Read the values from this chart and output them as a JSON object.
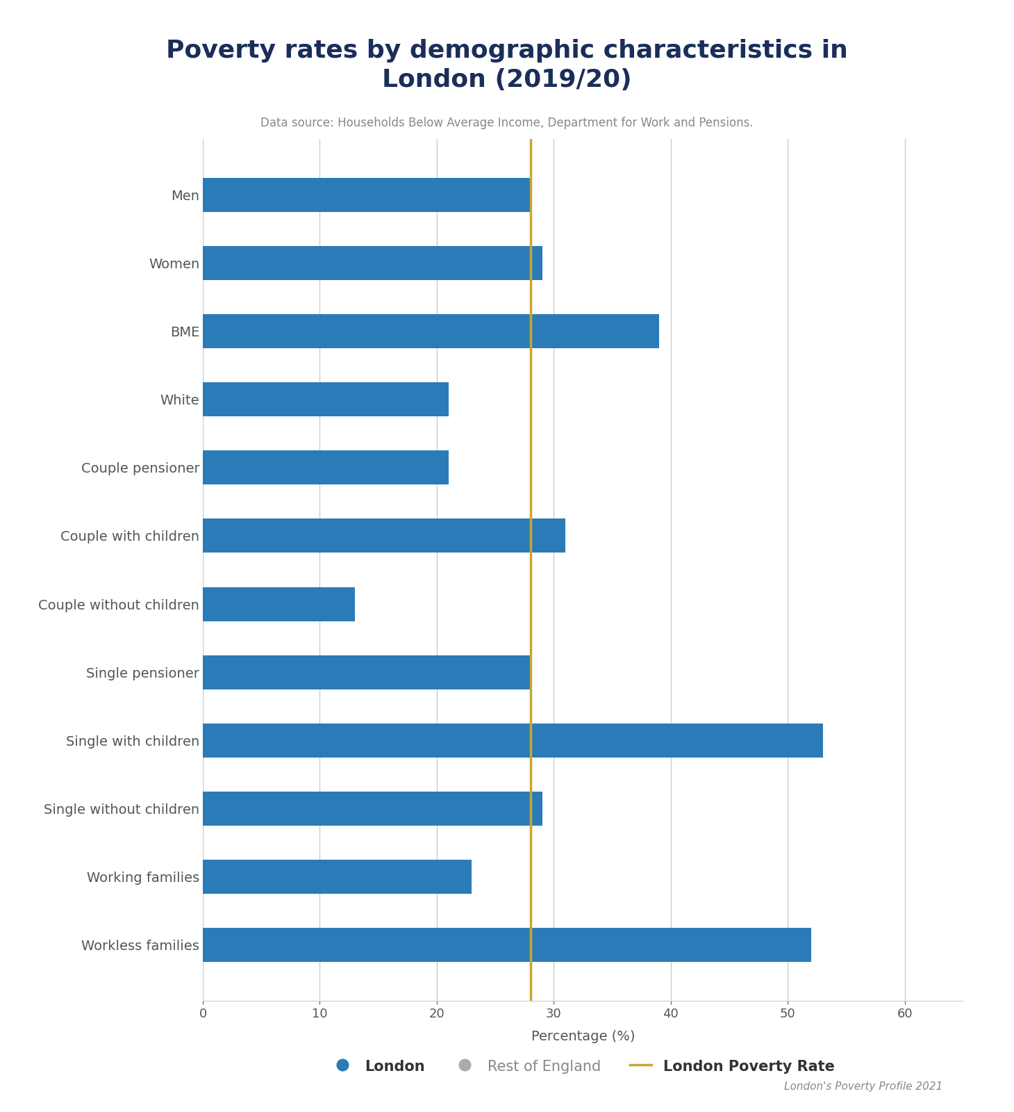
{
  "title": "Poverty rates by demographic characteristics in\nLondon (2019/20)",
  "subtitle": "Data source: Households Below Average Income, Department for Work and Pensions.",
  "xlabel": "Percentage (%)",
  "categories": [
    "Men",
    "Women",
    "BME",
    "White",
    "Couple pensioner",
    "Couple with children",
    "Couple without children",
    "Single pensioner",
    "Single with children",
    "Single without children",
    "Working families",
    "Workless families"
  ],
  "london_values": [
    28,
    29,
    39,
    21,
    21,
    31,
    13,
    28,
    53,
    29,
    23,
    52
  ],
  "poverty_line": 28,
  "bar_color": "#2b7bb9",
  "poverty_line_color": "#c8a82c",
  "xlim": [
    0,
    65
  ],
  "xticks": [
    0,
    10,
    20,
    30,
    40,
    50,
    60
  ],
  "title_color": "#1a2e5a",
  "subtitle_color": "#888888",
  "label_color": "#555555",
  "source_text": "London's Poverty Profile 2021",
  "legend_london_label": "London",
  "legend_roe_label": "Rest of England",
  "legend_line_label": "London Poverty Rate",
  "background_color": "#ffffff",
  "grid_color": "#cccccc"
}
